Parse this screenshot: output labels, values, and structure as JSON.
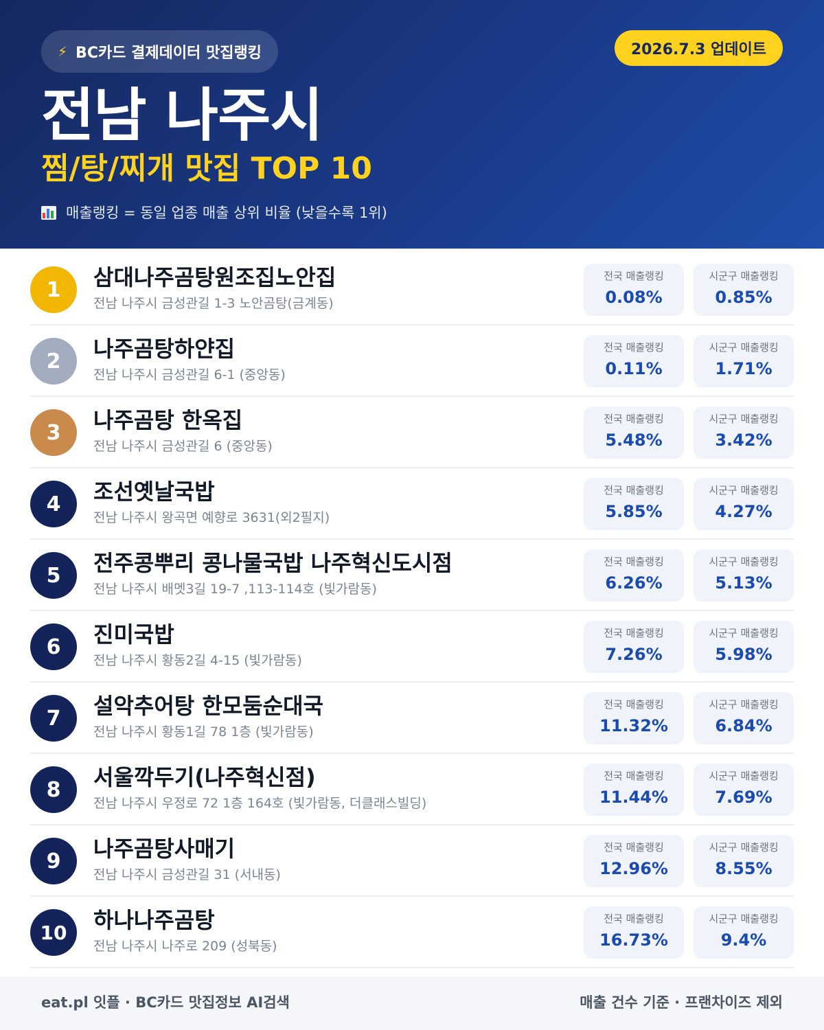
{
  "header": {
    "brand_icon": "lightning-bolt-icon",
    "brand_label": "BC카드 결제데이터 맛집랭킹",
    "update_label": "2026.7.3 업데이트",
    "title": "전남 나주시",
    "subtitle": "찜/탕/찌개 맛집 TOP 10",
    "note_icon": "bar-chart-icon",
    "note": "매출랭킹 = 동일 업종 매출 상위 비율 (낮을수록 1위)"
  },
  "stat_labels": {
    "national": "전국 매출랭킹",
    "local": "시군구 매출랭킹"
  },
  "colors": {
    "header_bg": "#1a3a88",
    "accent_yellow": "#ffd21f",
    "rank_gold": "#f2b705",
    "rank_silver": "#a3acbe",
    "rank_bronze": "#c98a4b",
    "rank_default": "#14245a",
    "stat_value": "#1a4bb0"
  },
  "restaurants": [
    {
      "rank": "1",
      "name": "삼대나주곰탕원조집노안집",
      "address": "전남 나주시 금성관길 1-3 노안곰탕(금계동)",
      "national": "0.08%",
      "local": "0.85%"
    },
    {
      "rank": "2",
      "name": "나주곰탕하얀집",
      "address": "전남 나주시 금성관길 6-1 (중앙동)",
      "national": "0.11%",
      "local": "1.71%"
    },
    {
      "rank": "3",
      "name": "나주곰탕 한옥집",
      "address": "전남 나주시 금성관길 6 (중앙동)",
      "national": "5.48%",
      "local": "3.42%"
    },
    {
      "rank": "4",
      "name": "조선옛날국밥",
      "address": "전남 나주시 왕곡면 예향로 3631(외2필지)",
      "national": "5.85%",
      "local": "4.27%"
    },
    {
      "rank": "5",
      "name": "전주콩뿌리 콩나물국밥 나주혁신도시점",
      "address": "전남 나주시 배멧3길 19-7 ,113-114호 (빛가람동)",
      "national": "6.26%",
      "local": "5.13%"
    },
    {
      "rank": "6",
      "name": "진미국밥",
      "address": "전남 나주시 황동2길 4-15 (빛가람동)",
      "national": "7.26%",
      "local": "5.98%"
    },
    {
      "rank": "7",
      "name": "설악추어탕 한모둠순대국",
      "address": "전남 나주시 황동1길 78 1층 (빛가람동)",
      "national": "11.32%",
      "local": "6.84%"
    },
    {
      "rank": "8",
      "name": "서울깍두기(나주혁신점)",
      "address": "전남 나주시 우정로 72 1층 164호 (빛가람동, 더클래스빌딩)",
      "national": "11.44%",
      "local": "7.69%"
    },
    {
      "rank": "9",
      "name": "나주곰탕사매기",
      "address": "전남 나주시 금성관길 31 (서내동)",
      "national": "12.96%",
      "local": "8.55%"
    },
    {
      "rank": "10",
      "name": "하나나주곰탕",
      "address": "전남 나주시 나주로 209 (성북동)",
      "national": "16.73%",
      "local": "9.4%"
    }
  ],
  "footer": {
    "left": "eat.pl 잇플 · BC카드 맛집정보 AI검색",
    "right": "매출 건수 기준 · 프랜차이즈 제외"
  }
}
